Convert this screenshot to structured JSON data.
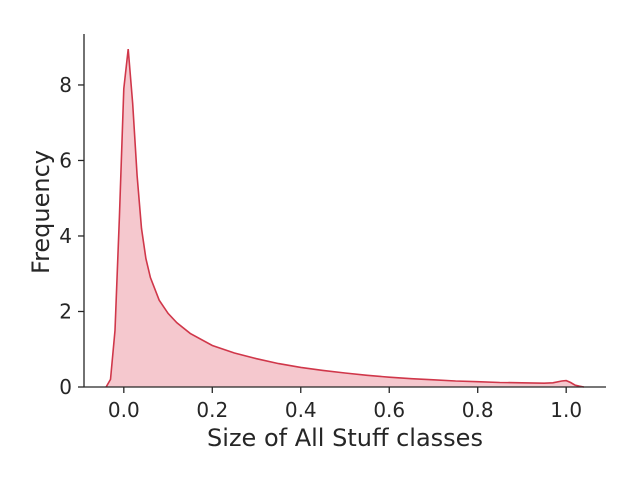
{
  "chart_data": {
    "type": "area",
    "title": "",
    "xlabel": "Size of All Stuff classes",
    "ylabel": "Frequency",
    "xlim": [
      -0.09,
      1.09
    ],
    "ylim": [
      0,
      9.35
    ],
    "xticks": [
      {
        "value": 0.0,
        "label": "0.0"
      },
      {
        "value": 0.2,
        "label": "0.2"
      },
      {
        "value": 0.4,
        "label": "0.4"
      },
      {
        "value": 0.6,
        "label": "0.6"
      },
      {
        "value": 0.8,
        "label": "0.8"
      },
      {
        "value": 1.0,
        "label": "1.0"
      }
    ],
    "yticks": [
      {
        "value": 0,
        "label": "0"
      },
      {
        "value": 2,
        "label": "2"
      },
      {
        "value": 4,
        "label": "4"
      },
      {
        "value": 6,
        "label": "6"
      },
      {
        "value": 8,
        "label": "8"
      }
    ],
    "grid": false,
    "series": [
      {
        "line_color": "#d0374a",
        "fill_color": "#f5c8ce",
        "x": [
          -0.04,
          -0.03,
          -0.02,
          -0.01,
          0.0,
          0.01,
          0.02,
          0.03,
          0.04,
          0.05,
          0.06,
          0.08,
          0.1,
          0.12,
          0.15,
          0.2,
          0.25,
          0.3,
          0.35,
          0.4,
          0.45,
          0.5,
          0.55,
          0.6,
          0.65,
          0.7,
          0.75,
          0.8,
          0.85,
          0.9,
          0.95,
          0.97,
          0.99,
          1.0,
          1.01,
          1.02,
          1.03,
          1.04
        ],
        "y": [
          0.0,
          0.2,
          1.5,
          4.5,
          7.9,
          8.95,
          7.5,
          5.6,
          4.2,
          3.4,
          2.9,
          2.3,
          1.95,
          1.7,
          1.42,
          1.1,
          0.9,
          0.75,
          0.62,
          0.52,
          0.44,
          0.37,
          0.31,
          0.26,
          0.22,
          0.19,
          0.16,
          0.14,
          0.12,
          0.11,
          0.1,
          0.11,
          0.16,
          0.17,
          0.12,
          0.05,
          0.02,
          0.0
        ]
      }
    ]
  }
}
